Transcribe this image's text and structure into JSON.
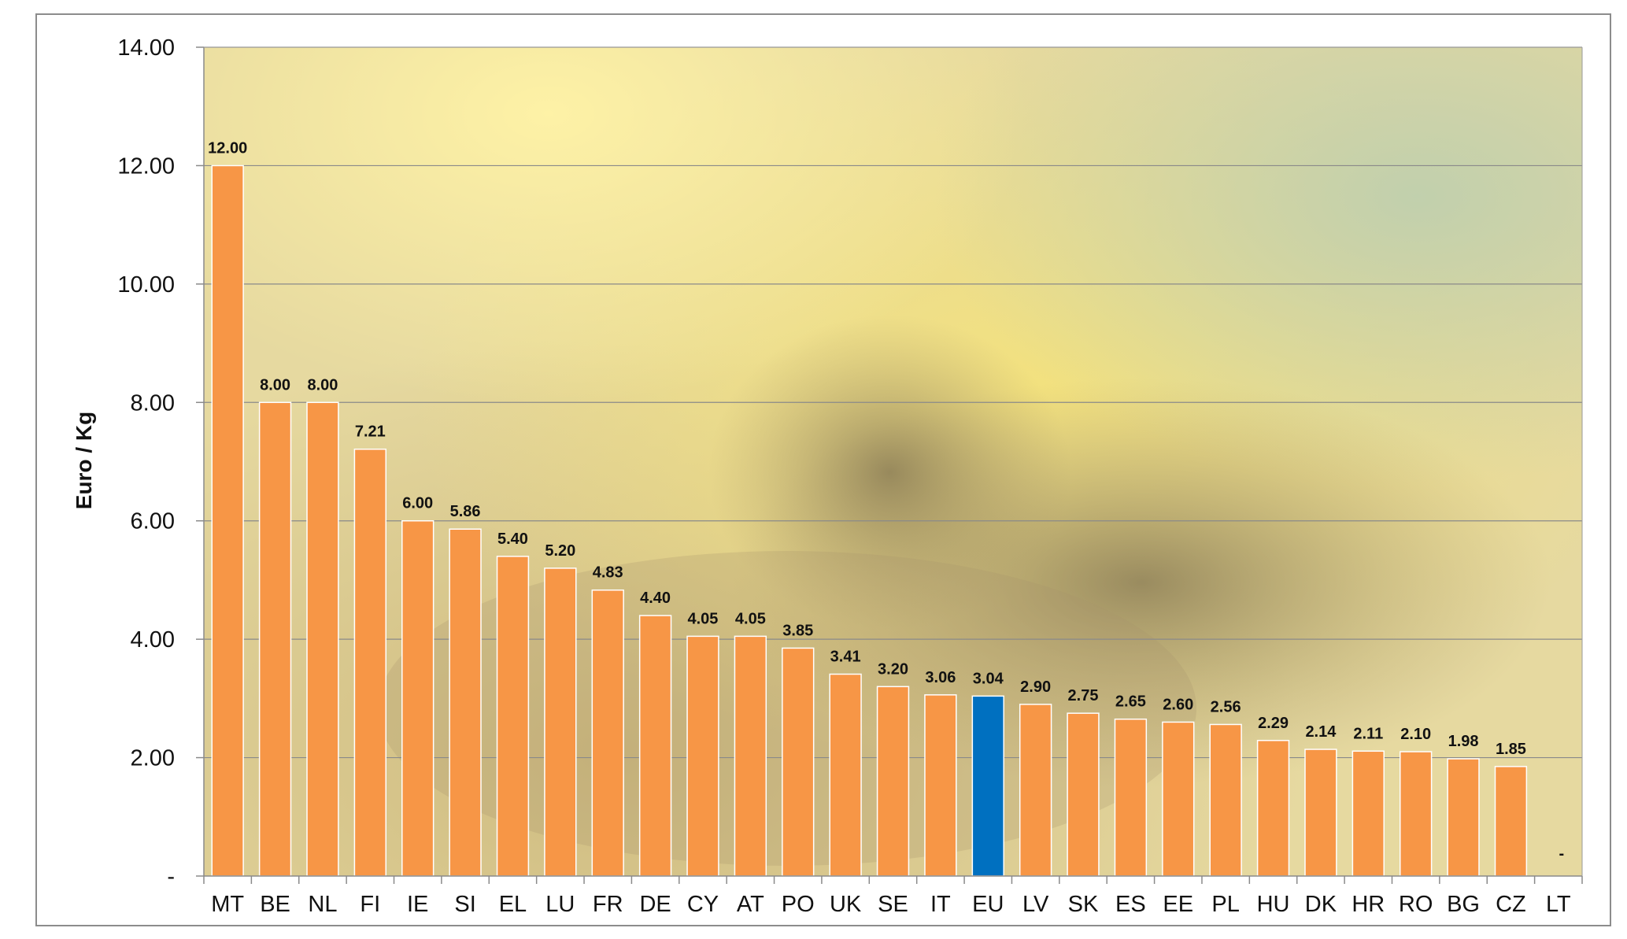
{
  "chart_data": {
    "type": "bar",
    "title": "",
    "xlabel": "",
    "ylabel": "Euro / Kg",
    "ylim": [
      0,
      14
    ],
    "yticks": [
      0,
      2,
      4,
      6,
      8,
      10,
      12,
      14
    ],
    "ytick_labels": [
      "-",
      "2.00",
      "4.00",
      "6.00",
      "8.00",
      "10.00",
      "12.00",
      "14.00"
    ],
    "grid": true,
    "legend": "none",
    "bar_color": "#F79646",
    "highlight_color": "#0070C0",
    "highlight_category": "EU",
    "categories": [
      "MT",
      "BE",
      "NL",
      "FI",
      "IE",
      "SI",
      "EL",
      "LU",
      "FR",
      "DE",
      "CY",
      "AT",
      "PO",
      "UK",
      "SE",
      "IT",
      "EU",
      "LV",
      "SK",
      "ES",
      "EE",
      "PL",
      "HU",
      "DK",
      "HR",
      "RO",
      "BG",
      "CZ",
      "LT"
    ],
    "values": [
      12.0,
      8.0,
      8.0,
      7.21,
      6.0,
      5.86,
      5.4,
      5.2,
      4.83,
      4.4,
      4.05,
      4.05,
      3.85,
      3.41,
      3.2,
      3.06,
      3.04,
      2.9,
      2.75,
      2.65,
      2.6,
      2.56,
      2.29,
      2.14,
      2.11,
      2.1,
      1.98,
      1.85,
      null
    ],
    "data_labels": [
      "12.00",
      "8.00",
      "8.00",
      "7.21",
      "6.00",
      "5.86",
      "5.40",
      "5.20",
      "4.83",
      "4.40",
      "4.05",
      "4.05",
      "3.85",
      "3.41",
      "3.20",
      "3.06",
      "3.04",
      "2.90",
      "2.75",
      "2.65",
      "2.60",
      "2.56",
      "2.29",
      "2.14",
      "2.11",
      "2.10",
      "1.98",
      "1.85",
      "-"
    ]
  }
}
